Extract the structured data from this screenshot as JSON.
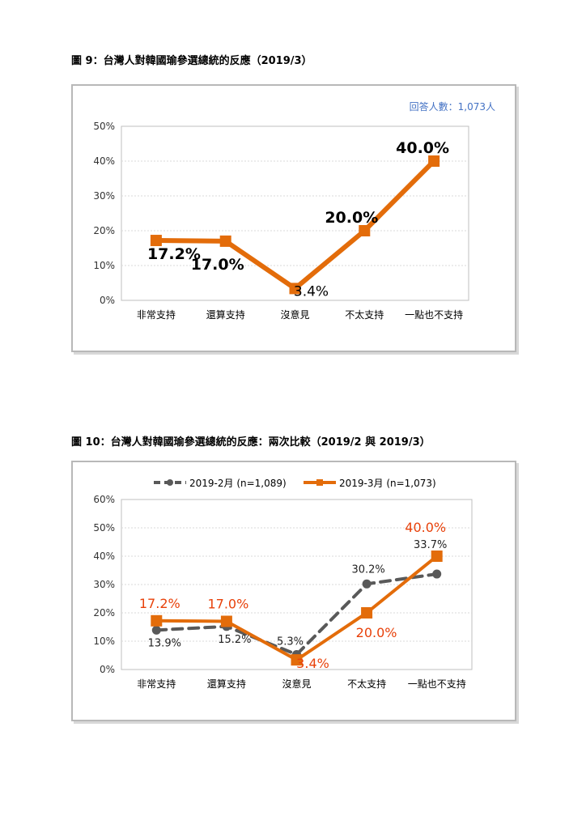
{
  "figure1": {
    "title": "圖 9：台灣人對韓國瑜參選總統的反應（2019/3）",
    "note": "回答人數：1,073人",
    "note_color": "#4472c4"
  },
  "figure2": {
    "title": "圖 10：台灣人對韓國瑜參選總統的反應：兩次比較（2019/2 與 2019/3）"
  },
  "chart_data": [
    {
      "type": "line",
      "categories": [
        "非常支持",
        "還算支持",
        "沒意見",
        "不太支持",
        "一點也不支持"
      ],
      "series": [
        {
          "values": [
            17.2,
            17.0,
            3.4,
            20.0,
            40.0
          ],
          "labels": [
            "17.2%",
            "17.0%",
            "3.4%",
            "20.0%",
            "40.0%"
          ],
          "color": "#e36c0a",
          "marker": "square"
        }
      ],
      "y_ticks": [
        "0%",
        "10%",
        "20%",
        "30%",
        "40%",
        "50%"
      ],
      "ylim": [
        0,
        50
      ],
      "grid": true
    },
    {
      "type": "line",
      "categories": [
        "非常支持",
        "還算支持",
        "沒意見",
        "不太支持",
        "一點也不支持"
      ],
      "series": [
        {
          "name": "2019-2月  (n=1,089)",
          "values": [
            13.9,
            15.2,
            5.3,
            30.2,
            33.7
          ],
          "labels": [
            "13.9%",
            "15.2%",
            "5.3%",
            "30.2%",
            "33.7%"
          ],
          "color": "#595959",
          "marker": "circle",
          "dash": true
        },
        {
          "name": "2019-3月  (n=1,073)",
          "values": [
            17.2,
            17.0,
            3.4,
            20.0,
            40.0
          ],
          "labels": [
            "17.2%",
            "17.0%",
            "3.4%",
            "20.0%",
            "40.0%"
          ],
          "color": "#e36c0a",
          "marker": "square",
          "label_color": "#e8410a"
        }
      ],
      "y_ticks": [
        "0%",
        "10%",
        "20%",
        "30%",
        "40%",
        "50%",
        "60%"
      ],
      "ylim": [
        0,
        60
      ],
      "grid": true,
      "legend": "top"
    }
  ]
}
